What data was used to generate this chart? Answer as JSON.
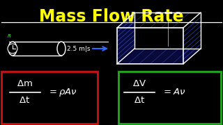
{
  "bg_color": "#000000",
  "title": "Mass Flow Rate",
  "title_color": "#FFFF00",
  "title_fontsize": 17,
  "line_color": "#FFFFFF",
  "pipe_color": "#FFFFFF",
  "speed_text": "2.5 m|s",
  "arrow_color": "#3366FF",
  "box_color": "#2244CC",
  "red_box_color": "#CC1111",
  "green_box_color": "#22AA22",
  "r_label_color": "#22FF22"
}
